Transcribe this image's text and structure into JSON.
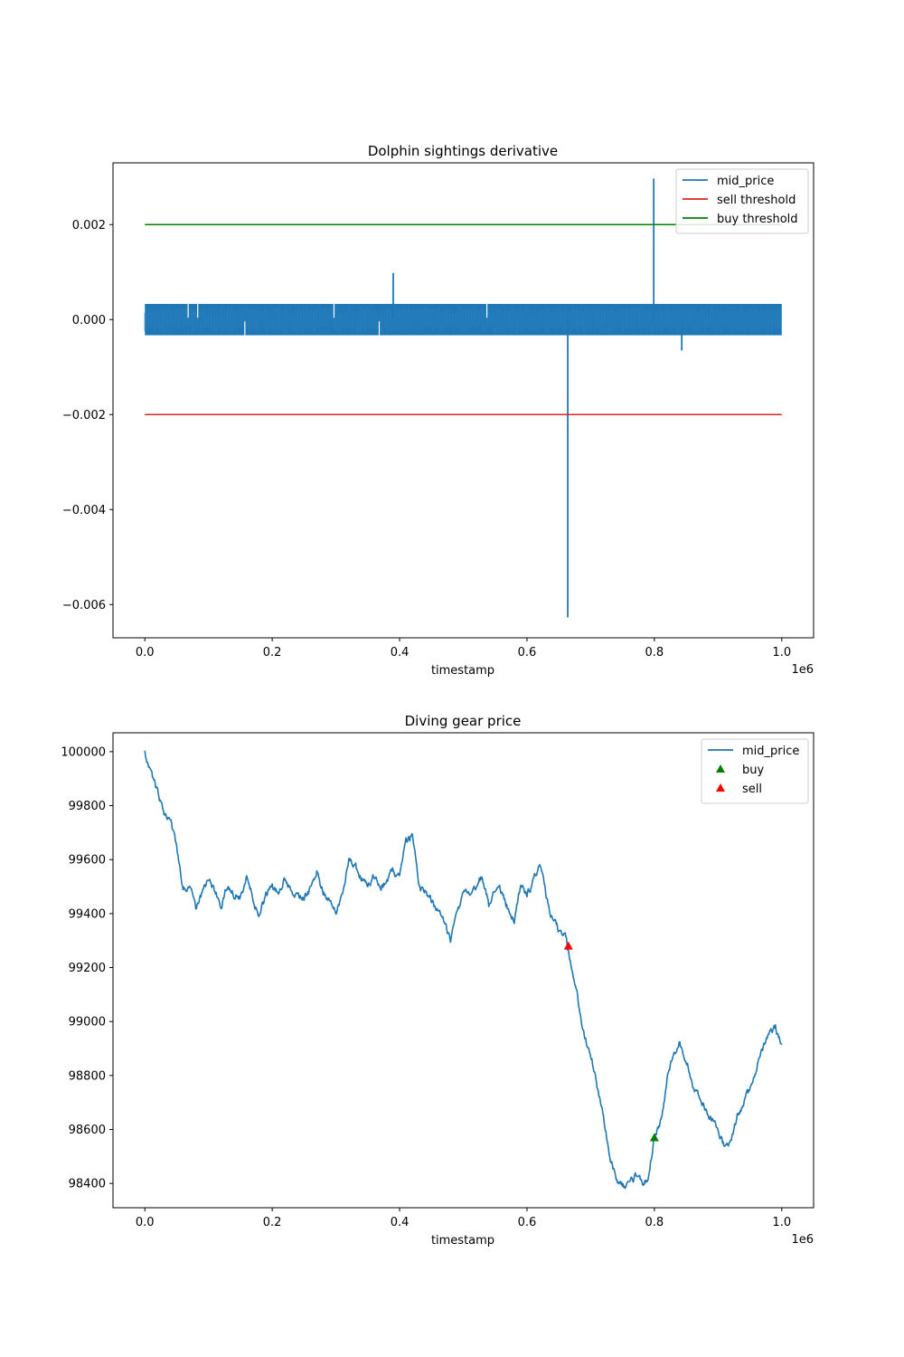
{
  "chart_data": [
    {
      "type": "line",
      "title": "Dolphin sightings derivative",
      "xlabel": "timestamp",
      "ylabel": "",
      "x_offset_label": "1e6",
      "xlim": [
        -0.05,
        1.05
      ],
      "ylim": [
        -0.0067,
        0.0033
      ],
      "xticks": [
        0.0,
        0.2,
        0.4,
        0.6,
        0.8,
        1.0
      ],
      "xtick_labels": [
        "0.0",
        "0.2",
        "0.4",
        "0.6",
        "0.8",
        "1.0"
      ],
      "yticks": [
        0.002,
        0.0,
        -0.002,
        -0.004,
        -0.006
      ],
      "ytick_labels": [
        "0.002",
        "0.000",
        "−0.002",
        "−0.004",
        "−0.006"
      ],
      "legend_position": "top-right",
      "series": [
        {
          "name": "mid_price",
          "color": "#1f77b4",
          "band": {
            "x_start": 0.0,
            "x_end": 1.0,
            "low": -0.00033,
            "high": 0.00033
          },
          "gaps": [
            0.068,
            0.083,
            0.157,
            0.297,
            0.368,
            0.537
          ],
          "spikes": [
            {
              "x": 0.39,
              "value": 0.00098
            },
            {
              "x": 0.664,
              "value": -0.00627
            },
            {
              "x": 0.799,
              "value": 0.00297
            },
            {
              "x": 0.843,
              "value": -0.00065
            }
          ]
        },
        {
          "name": "sell threshold",
          "color": "#d62728",
          "x": [
            0.0,
            1.0
          ],
          "values": [
            -0.002,
            -0.002
          ]
        },
        {
          "name": "buy threshold",
          "color": "#008000",
          "x": [
            0.0,
            1.0
          ],
          "values": [
            0.002,
            0.002
          ]
        }
      ]
    },
    {
      "type": "line",
      "title": "Diving gear price",
      "xlabel": "timestamp",
      "ylabel": "",
      "x_offset_label": "1e6",
      "xlim": [
        -0.05,
        1.05
      ],
      "ylim": [
        98310,
        100070
      ],
      "xticks": [
        0.0,
        0.2,
        0.4,
        0.6,
        0.8,
        1.0
      ],
      "xtick_labels": [
        "0.0",
        "0.2",
        "0.4",
        "0.6",
        "0.8",
        "1.0"
      ],
      "yticks": [
        100000,
        99800,
        99600,
        99400,
        99200,
        99000,
        98800,
        98600,
        98400
      ],
      "ytick_labels": [
        "100000",
        "99800",
        "99600",
        "99400",
        "99200",
        "99000",
        "98800",
        "98600",
        "98400"
      ],
      "legend_position": "top-right",
      "series": [
        {
          "name": "mid_price",
          "color": "#1f77b4",
          "x": [
            0.0,
            0.01,
            0.02,
            0.03,
            0.04,
            0.05,
            0.06,
            0.07,
            0.08,
            0.09,
            0.1,
            0.11,
            0.12,
            0.13,
            0.14,
            0.15,
            0.16,
            0.17,
            0.18,
            0.19,
            0.2,
            0.21,
            0.22,
            0.23,
            0.24,
            0.25,
            0.26,
            0.27,
            0.28,
            0.29,
            0.3,
            0.31,
            0.32,
            0.33,
            0.34,
            0.35,
            0.36,
            0.37,
            0.38,
            0.39,
            0.4,
            0.41,
            0.42,
            0.43,
            0.44,
            0.45,
            0.46,
            0.47,
            0.48,
            0.49,
            0.5,
            0.51,
            0.52,
            0.53,
            0.54,
            0.55,
            0.56,
            0.57,
            0.58,
            0.59,
            0.6,
            0.61,
            0.62,
            0.63,
            0.64,
            0.65,
            0.66,
            0.67,
            0.68,
            0.69,
            0.7,
            0.71,
            0.72,
            0.73,
            0.74,
            0.75,
            0.76,
            0.77,
            0.78,
            0.79,
            0.8,
            0.81,
            0.82,
            0.83,
            0.84,
            0.85,
            0.86,
            0.87,
            0.88,
            0.89,
            0.9,
            0.91,
            0.92,
            0.93,
            0.94,
            0.95,
            0.96,
            0.97,
            0.98,
            0.99,
            1.0
          ],
          "values": [
            100000,
            99920,
            99850,
            99780,
            99750,
            99640,
            99490,
            99500,
            99420,
            99480,
            99530,
            99480,
            99430,
            99510,
            99470,
            99460,
            99550,
            99450,
            99390,
            99470,
            99500,
            99470,
            99530,
            99480,
            99470,
            99460,
            99490,
            99550,
            99480,
            99460,
            99400,
            99470,
            99600,
            99580,
            99530,
            99500,
            99540,
            99500,
            99520,
            99560,
            99530,
            99660,
            99690,
            99500,
            99480,
            99450,
            99400,
            99370,
            99300,
            99400,
            99480,
            99460,
            99500,
            99540,
            99430,
            99500,
            99480,
            99420,
            99380,
            99500,
            99470,
            99520,
            99590,
            99460,
            99380,
            99340,
            99320,
            99200,
            99080,
            98950,
            98880,
            98760,
            98650,
            98500,
            98420,
            98390,
            98400,
            98430,
            98400,
            98420,
            98570,
            98630,
            98780,
            98880,
            98920,
            98860,
            98770,
            98720,
            98680,
            98640,
            98600,
            98530,
            98560,
            98650,
            98700,
            98750,
            98830,
            98900,
            98950,
            98980,
            98900
          ]
        },
        {
          "name": "buy",
          "color": "#008000",
          "marker": "triangle",
          "x": [
            0.8
          ],
          "values": [
            98570
          ]
        },
        {
          "name": "sell",
          "color": "#ff0000",
          "marker": "triangle",
          "x": [
            0.665
          ],
          "values": [
            99280
          ]
        }
      ]
    }
  ]
}
